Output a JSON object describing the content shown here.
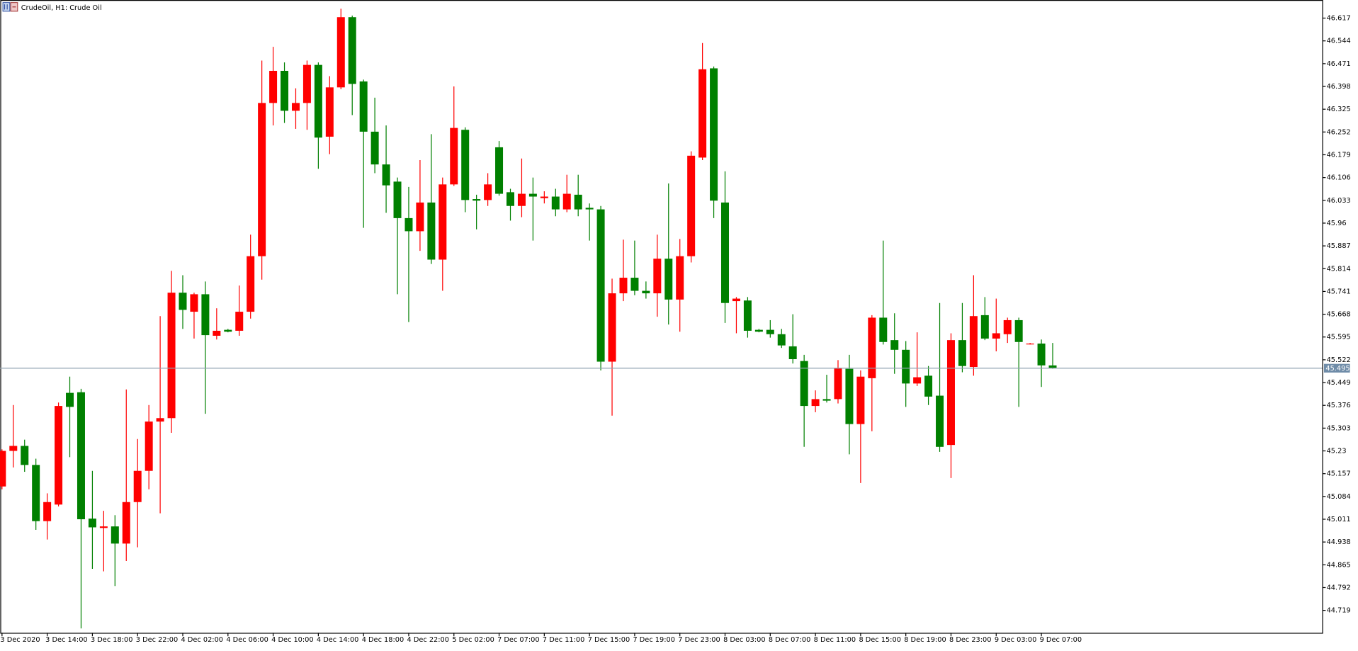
{
  "chart_data": {
    "type": "candlestick",
    "title": "CrudeOil, H1:  Crude Oil",
    "categories": [
      "3 Dec 2020",
      null,
      null,
      null,
      "3 Dec 14:00",
      null,
      null,
      null,
      "3 Dec 18:00",
      null,
      null,
      null,
      "3 Dec 22:00",
      null,
      null,
      null,
      "4 Dec 02:00",
      null,
      null,
      null,
      "4 Dec 06:00",
      null,
      null,
      null,
      "4 Dec 10:00",
      null,
      null,
      null,
      "4 Dec 14:00",
      null,
      null,
      null,
      "4 Dec 18:00",
      null,
      null,
      null,
      "4 Dec 22:00",
      null,
      null,
      null,
      "5 Dec 02:00",
      null,
      null,
      null,
      "7 Dec 07:00",
      null,
      null,
      null,
      "7 Dec 11:00",
      null,
      null,
      null,
      "7 Dec 15:00",
      null,
      null,
      null,
      "7 Dec 19:00",
      null,
      null,
      null,
      "7 Dec 23:00",
      null,
      null,
      null,
      "8 Dec 03:00",
      null,
      null,
      null,
      "8 Dec 07:00",
      null,
      null,
      null,
      "8 Dec 11:00",
      null,
      null,
      null,
      "8 Dec 15:00",
      null,
      null,
      null,
      "8 Dec 19:00",
      null,
      null,
      null,
      "8 Dec 23:00",
      null,
      null,
      null,
      "9 Dec 03:00",
      null,
      null,
      null,
      "9 Dec 07:00",
      null
    ],
    "open": [
      45.116,
      45.23,
      45.246,
      45.185,
      45.005,
      45.058,
      45.416,
      45.418,
      45.013,
      44.983,
      44.988,
      44.933,
      45.066,
      45.166,
      45.324,
      45.335,
      45.737,
      45.676,
      45.732,
      45.599,
      45.618,
      45.615,
      45.676,
      45.854,
      46.345,
      46.448,
      46.32,
      46.345,
      46.467,
      46.237,
      46.395,
      46.62,
      46.414,
      46.253,
      46.148,
      46.093,
      45.976,
      45.934,
      46.026,
      45.843,
      46.084,
      46.259,
      46.037,
      46.034,
      46.203,
      46.059,
      46.015,
      46.054,
      46.04,
      46.045,
      46.004,
      46.051,
      46.009,
      46.004,
      45.516,
      45.735,
      45.785,
      45.743,
      45.735,
      45.846,
      45.715,
      45.854,
      46.17,
      46.456,
      46.026,
      45.71,
      45.712,
      45.618,
      45.618,
      45.604,
      45.565,
      45.518,
      45.374,
      45.396,
      45.396,
      45.493,
      45.316,
      45.463,
      45.657,
      45.585,
      45.554,
      45.446,
      45.471,
      45.407,
      45.249,
      45.585,
      45.499,
      45.665,
      45.59,
      45.604,
      45.649,
      45.574,
      45.574,
      45.504
    ],
    "high": [
      45.235,
      45.377,
      45.266,
      45.205,
      45.094,
      45.385,
      45.468,
      45.429,
      45.166,
      45.038,
      45.024,
      45.427,
      45.268,
      45.377,
      45.662,
      45.807,
      45.793,
      45.737,
      45.773,
      45.687,
      45.621,
      45.76,
      45.923,
      46.481,
      46.525,
      46.475,
      46.392,
      46.481,
      46.475,
      46.431,
      46.647,
      46.625,
      46.42,
      46.362,
      46.273,
      46.106,
      46.076,
      46.162,
      46.245,
      46.106,
      46.398,
      46.267,
      46.051,
      46.12,
      46.223,
      46.07,
      46.167,
      46.106,
      46.062,
      46.07,
      46.115,
      46.115,
      46.023,
      46.015,
      45.782,
      45.907,
      45.904,
      45.773,
      45.923,
      46.087,
      45.909,
      46.19,
      46.537,
      46.462,
      46.126,
      45.723,
      45.723,
      45.621,
      45.649,
      45.621,
      45.668,
      45.538,
      45.424,
      45.474,
      45.521,
      45.538,
      45.488,
      45.665,
      45.904,
      45.671,
      45.582,
      45.61,
      45.502,
      45.704,
      45.607,
      45.704,
      45.793,
      45.723,
      45.718,
      45.657,
      45.657,
      45.576,
      45.587,
      45.576
    ],
    "low": [
      45.107,
      45.177,
      45.163,
      44.977,
      44.946,
      45.052,
      45.21,
      44.661,
      44.852,
      44.844,
      44.797,
      44.877,
      44.921,
      45.107,
      45.03,
      45.288,
      45.621,
      45.59,
      45.349,
      45.587,
      45.61,
      45.599,
      45.654,
      45.779,
      46.273,
      46.281,
      46.262,
      46.259,
      46.134,
      46.181,
      46.389,
      46.306,
      45.945,
      46.12,
      45.993,
      45.732,
      45.643,
      45.871,
      45.829,
      45.743,
      46.079,
      45.995,
      45.94,
      46.015,
      46.048,
      45.968,
      45.979,
      45.904,
      46.023,
      45.982,
      45.995,
      45.982,
      45.904,
      45.488,
      45.343,
      45.71,
      45.729,
      45.718,
      45.66,
      45.635,
      45.612,
      45.834,
      46.162,
      45.976,
      45.64,
      45.607,
      45.593,
      45.61,
      45.593,
      45.56,
      45.51,
      45.243,
      45.354,
      45.385,
      45.382,
      45.219,
      45.127,
      45.293,
      45.571,
      45.477,
      45.371,
      45.438,
      45.377,
      45.227,
      45.143,
      45.482,
      45.471,
      45.585,
      45.549,
      45.576,
      45.371,
      45.571,
      45.435,
      45.493
    ],
    "close": [
      45.23,
      45.246,
      45.185,
      45.005,
      45.066,
      45.374,
      45.371,
      45.011,
      44.985,
      44.988,
      44.933,
      45.066,
      45.166,
      45.324,
      45.335,
      45.737,
      45.682,
      45.732,
      45.601,
      45.615,
      45.612,
      45.676,
      45.854,
      46.345,
      46.448,
      46.32,
      46.345,
      46.467,
      46.234,
      46.395,
      46.62,
      46.406,
      46.253,
      46.148,
      46.081,
      45.976,
      45.934,
      46.026,
      45.843,
      46.084,
      46.265,
      46.034,
      46.032,
      46.084,
      46.054,
      46.015,
      46.054,
      46.045,
      46.045,
      46.004,
      46.054,
      46.004,
      46.004,
      45.516,
      45.735,
      45.785,
      45.743,
      45.735,
      45.846,
      45.715,
      45.854,
      46.176,
      46.453,
      46.032,
      45.704,
      45.718,
      45.615,
      45.612,
      45.604,
      45.568,
      45.524,
      45.374,
      45.396,
      45.391,
      45.496,
      45.316,
      45.468,
      45.657,
      45.579,
      45.554,
      45.446,
      45.466,
      45.404,
      45.243,
      45.585,
      45.502,
      45.662,
      45.59,
      45.607,
      45.649,
      45.579,
      45.574,
      45.504,
      45.496
    ],
    "up_color": "#ff0000",
    "down_color": "#008000",
    "last_price": 45.495,
    "ylim": [
      44.647,
      46.675
    ],
    "yticks": [
      44.719,
      44.792,
      44.865,
      44.938,
      45.011,
      45.084,
      45.157,
      45.23,
      45.303,
      45.376,
      45.449,
      45.522,
      45.595,
      45.668,
      45.741,
      45.814,
      45.887,
      45.96,
      46.033,
      46.106,
      46.179,
      46.252,
      46.325,
      46.398,
      46.471,
      46.544,
      46.617
    ]
  }
}
